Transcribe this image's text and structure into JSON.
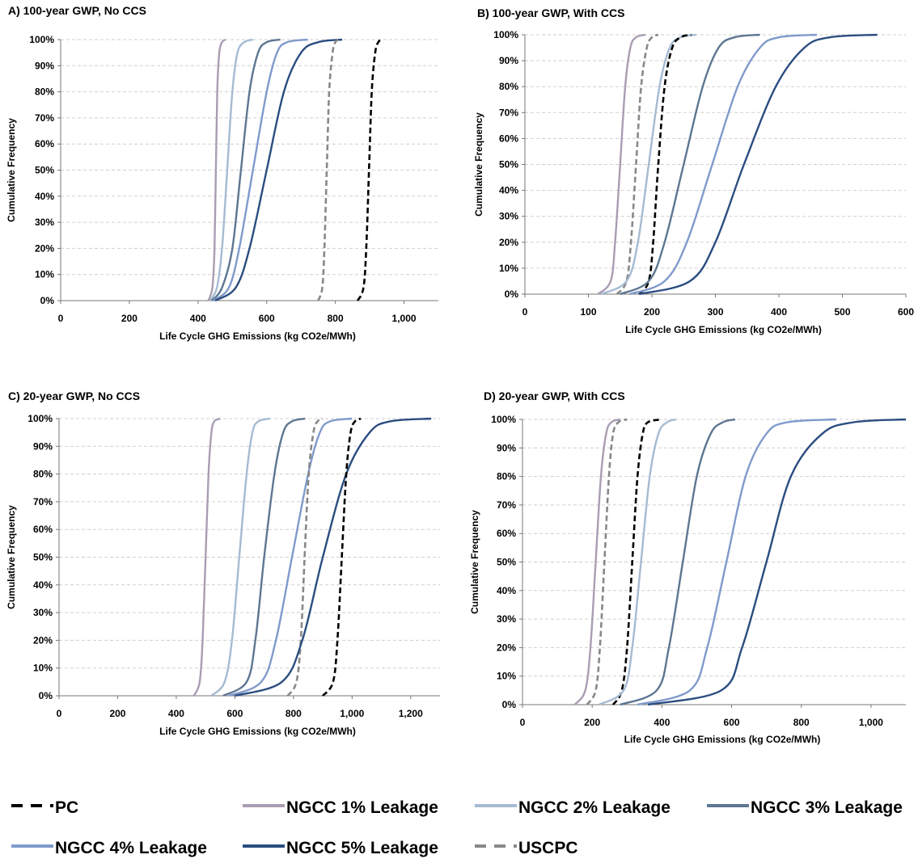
{
  "legend": [
    {
      "key": "pc",
      "label": "PC",
      "color": "#000000",
      "dash": true
    },
    {
      "key": "n1",
      "label": "NGCC 1% Leakage",
      "color": "#a99db3",
      "dash": false
    },
    {
      "key": "n2",
      "label": "NGCC 2% Leakage",
      "color": "#a5bbd2",
      "dash": false
    },
    {
      "key": "n3",
      "label": "NGCC 3% Leakage",
      "color": "#5d7691",
      "dash": false
    },
    {
      "key": "n4",
      "label": "NGCC 4% Leakage",
      "color": "#7f9acb",
      "dash": false
    },
    {
      "key": "n5",
      "label": "NGCC 5% Leakage",
      "color": "#2b4d80",
      "dash": false
    },
    {
      "key": "us",
      "label": "USCPC",
      "color": "#888888",
      "dash": true
    }
  ],
  "chart_data": [
    {
      "type": "line",
      "title": "A) 100-year GWP, No CCS",
      "xlabel": "Life Cycle GHG Emissions (kg CO2e/MWh)",
      "ylabel": "Cumulative Frequency",
      "xlim": [
        0,
        1100
      ],
      "ylim": [
        0,
        100
      ],
      "xticks": [
        0,
        200,
        400,
        600,
        800,
        1000
      ],
      "xticklabels": [
        "0",
        "200",
        "400",
        "600",
        "800",
        "1,000"
      ],
      "yticklabels": [
        "0%",
        "10%",
        "20%",
        "30%",
        "40%",
        "50%",
        "60%",
        "70%",
        "80%",
        "90%",
        "100%"
      ],
      "grid": true,
      "series": [
        {
          "key": "n1",
          "x": [
            430,
            442,
            448,
            452,
            456,
            462,
            470,
            480
          ],
          "y": [
            0,
            5,
            20,
            50,
            80,
            95,
            99,
            100
          ]
        },
        {
          "key": "n2",
          "x": [
            435,
            455,
            470,
            485,
            500,
            515,
            535,
            560
          ],
          "y": [
            0,
            5,
            20,
            50,
            80,
            95,
            99,
            100
          ]
        },
        {
          "key": "n3",
          "x": [
            440,
            470,
            500,
            525,
            550,
            575,
            600,
            640
          ],
          "y": [
            0,
            5,
            20,
            50,
            80,
            95,
            99,
            100
          ]
        },
        {
          "key": "n4",
          "x": [
            445,
            490,
            520,
            560,
            600,
            630,
            660,
            720
          ],
          "y": [
            0,
            5,
            20,
            50,
            80,
            95,
            99,
            100
          ]
        },
        {
          "key": "n5",
          "x": [
            450,
            510,
            550,
            600,
            650,
            700,
            750,
            820
          ],
          "y": [
            0,
            5,
            20,
            50,
            80,
            95,
            99,
            100
          ]
        },
        {
          "key": "us",
          "x": [
            750,
            762,
            768,
            775,
            782,
            792,
            800,
            810
          ],
          "y": [
            0,
            5,
            20,
            50,
            80,
            95,
            99,
            100
          ]
        },
        {
          "key": "pc",
          "x": [
            865,
            882,
            890,
            898,
            906,
            916,
            925,
            935
          ],
          "y": [
            0,
            5,
            20,
            50,
            80,
            95,
            99,
            100
          ]
        }
      ]
    },
    {
      "type": "line",
      "title": "B) 100-year GWP,  With CCS",
      "xlabel": "Life Cycle GHG Emissions (kg CO2e/MWh)",
      "ylabel": "Cumulative Frequency",
      "xlim": [
        0,
        600
      ],
      "ylim": [
        0,
        100
      ],
      "xticks": [
        0,
        100,
        200,
        300,
        400,
        500,
        600
      ],
      "xticklabels": [
        "0",
        "100",
        "200",
        "300",
        "400",
        "500",
        "600"
      ],
      "yticklabels": [
        "0%",
        "10%",
        "20%",
        "30%",
        "40%",
        "50%",
        "60%",
        "70%",
        "80%",
        "90%",
        "100%"
      ],
      "grid": true,
      "series": [
        {
          "key": "n1",
          "x": [
            115,
            135,
            142,
            150,
            158,
            166,
            175,
            190
          ],
          "y": [
            0,
            5,
            20,
            50,
            80,
            95,
            99,
            100
          ]
        },
        {
          "key": "us",
          "x": [
            145,
            160,
            167,
            175,
            183,
            192,
            200,
            210
          ],
          "y": [
            0,
            5,
            20,
            50,
            80,
            95,
            99,
            100
          ]
        },
        {
          "key": "n2",
          "x": [
            120,
            160,
            178,
            195,
            212,
            228,
            245,
            270
          ],
          "y": [
            0,
            5,
            20,
            50,
            80,
            95,
            99,
            100
          ]
        },
        {
          "key": "pc",
          "x": [
            180,
            195,
            202,
            210,
            220,
            232,
            245,
            262
          ],
          "y": [
            0,
            5,
            20,
            50,
            80,
            95,
            99,
            100
          ]
        },
        {
          "key": "n3",
          "x": [
            150,
            195,
            220,
            250,
            280,
            305,
            330,
            370
          ],
          "y": [
            0,
            5,
            20,
            50,
            80,
            95,
            99,
            100
          ]
        },
        {
          "key": "n4",
          "x": [
            165,
            220,
            255,
            295,
            335,
            370,
            400,
            460
          ],
          "y": [
            0,
            5,
            20,
            50,
            80,
            95,
            99,
            100
          ]
        },
        {
          "key": "n5",
          "x": [
            180,
            260,
            300,
            345,
            395,
            440,
            480,
            555
          ],
          "y": [
            0,
            5,
            20,
            50,
            80,
            95,
            99,
            100
          ]
        }
      ]
    },
    {
      "type": "line",
      "title": "C) 20-year GWP, No CCS",
      "xlabel": "Life Cycle GHG Emissions (kg CO2e/MWh)",
      "ylabel": "Cumulative Frequency",
      "xlim": [
        0,
        1300
      ],
      "ylim": [
        0,
        100
      ],
      "xticks": [
        0,
        200,
        400,
        600,
        800,
        1000,
        1200
      ],
      "xticklabels": [
        "0",
        "200",
        "400",
        "600",
        "800",
        "1,000",
        "1,200"
      ],
      "yticklabels": [
        "0%",
        "10%",
        "20%",
        "30%",
        "40%",
        "50%",
        "60%",
        "70%",
        "80%",
        "90%",
        "100%"
      ],
      "grid": true,
      "series": [
        {
          "key": "n1",
          "x": [
            460,
            480,
            490,
            500,
            510,
            520,
            530,
            550
          ],
          "y": [
            0,
            5,
            20,
            50,
            80,
            95,
            99,
            100
          ]
        },
        {
          "key": "n2",
          "x": [
            520,
            565,
            590,
            615,
            640,
            660,
            680,
            720
          ],
          "y": [
            0,
            5,
            20,
            50,
            80,
            95,
            99,
            100
          ]
        },
        {
          "key": "n3",
          "x": [
            560,
            640,
            670,
            700,
            735,
            765,
            795,
            840
          ],
          "y": [
            0,
            5,
            20,
            50,
            80,
            95,
            99,
            100
          ]
        },
        {
          "key": "n4",
          "x": [
            580,
            690,
            740,
            795,
            850,
            890,
            925,
            1000
          ],
          "y": [
            0,
            5,
            20,
            50,
            80,
            95,
            99,
            100
          ]
        },
        {
          "key": "us",
          "x": [
            780,
            810,
            825,
            838,
            852,
            868,
            882,
            900
          ],
          "y": [
            0,
            5,
            20,
            50,
            80,
            95,
            99,
            100
          ]
        },
        {
          "key": "n5",
          "x": [
            600,
            760,
            830,
            900,
            980,
            1060,
            1130,
            1270
          ],
          "y": [
            0,
            5,
            20,
            50,
            80,
            95,
            99,
            100
          ]
        },
        {
          "key": "pc",
          "x": [
            900,
            935,
            950,
            965,
            980,
            995,
            1010,
            1030
          ],
          "y": [
            0,
            5,
            20,
            50,
            80,
            95,
            99,
            100
          ]
        }
      ]
    },
    {
      "type": "line",
      "title": "D) 20-year GWP, With CCS",
      "xlabel": "Life Cycle GHG Emissions (kg CO2e/MWh)",
      "ylabel": "Cumulative Frequency",
      "xlim": [
        0,
        1100
      ],
      "ylim": [
        0,
        100
      ],
      "xticks": [
        0,
        200,
        400,
        600,
        800,
        1000
      ],
      "xticklabels": [
        "0",
        "200",
        "400",
        "600",
        "800",
        "1,000"
      ],
      "yticklabels": [
        "0%",
        "10%",
        "20%",
        "30%",
        "40%",
        "50%",
        "60%",
        "70%",
        "80%",
        "90%",
        "100%"
      ],
      "grid": true,
      "series": [
        {
          "key": "n1",
          "x": [
            150,
            180,
            195,
            210,
            225,
            240,
            255,
            280
          ],
          "y": [
            0,
            5,
            20,
            50,
            80,
            95,
            99,
            100
          ]
        },
        {
          "key": "us",
          "x": [
            185,
            210,
            222,
            235,
            248,
            260,
            275,
            300
          ],
          "y": [
            0,
            5,
            20,
            50,
            80,
            95,
            99,
            100
          ]
        },
        {
          "key": "pc",
          "x": [
            260,
            285,
            300,
            315,
            330,
            345,
            360,
            400
          ],
          "y": [
            0,
            5,
            20,
            50,
            80,
            95,
            99,
            100
          ]
        },
        {
          "key": "n2",
          "x": [
            220,
            290,
            315,
            340,
            365,
            390,
            415,
            440
          ],
          "y": [
            0,
            5,
            20,
            50,
            80,
            95,
            99,
            100
          ]
        },
        {
          "key": "n3",
          "x": [
            280,
            385,
            420,
            460,
            500,
            540,
            575,
            610
          ],
          "y": [
            0,
            5,
            20,
            50,
            80,
            95,
            99,
            100
          ]
        },
        {
          "key": "n4",
          "x": [
            330,
            480,
            530,
            585,
            640,
            700,
            760,
            900
          ],
          "y": [
            0,
            5,
            20,
            50,
            80,
            95,
            99,
            100
          ]
        },
        {
          "key": "n5",
          "x": [
            360,
            570,
            630,
            700,
            770,
            860,
            950,
            1100
          ],
          "y": [
            0,
            5,
            20,
            50,
            80,
            95,
            99,
            100
          ]
        }
      ]
    }
  ]
}
